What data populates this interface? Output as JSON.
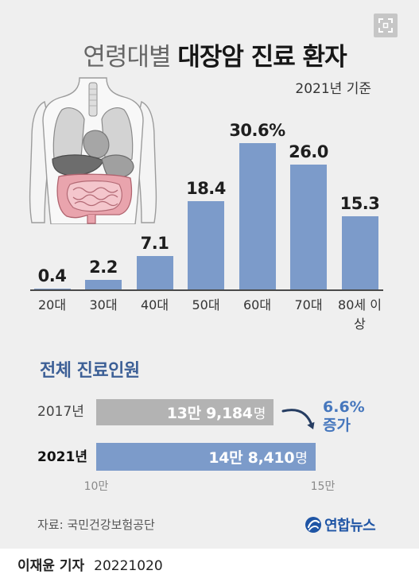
{
  "icons": {
    "expand": "expand-icon",
    "illustration": "torso-organs-illustration",
    "logo": "globe-logo-icon",
    "arrow": "curved-arrow-icon"
  },
  "colors": {
    "card_background": "#efefef",
    "age_bar": "#7c9bca",
    "bar_2017": "#b3b3b3",
    "bar_2021": "#7c9bca",
    "section_title": "#3c5f96",
    "increase": "#4677bd",
    "arrow": "#263d62",
    "logo": "#1f55a5"
  },
  "chart_data": [
    {
      "type": "bar",
      "title_light": "연령대별",
      "title": "대장암 진료 환자",
      "subtitle": "2021년 기준",
      "categories": [
        "20대",
        "30대",
        "40대",
        "50대",
        "60대",
        "70대",
        "80세 이상"
      ],
      "values": [
        0.4,
        2.2,
        7.1,
        18.4,
        30.6,
        26.0,
        15.3
      ],
      "value_labels": [
        "0.4",
        "2.2",
        "7.1",
        "18.4",
        "30.6%",
        "26.0",
        "15.3"
      ],
      "ylim": [
        0,
        33
      ],
      "grid": false
    },
    {
      "type": "bar",
      "orientation": "horizontal",
      "title": "전체 진료인원",
      "categories": [
        "2017년",
        "2021년"
      ],
      "values": [
        139184,
        148410
      ],
      "value_labels": [
        "13만 9,184",
        "14만 8,410"
      ],
      "unit": "명",
      "xlim": [
        100000,
        150000
      ],
      "x_ticks": [
        100000,
        150000
      ],
      "x_tick_labels": [
        "10만",
        "15만"
      ],
      "annotation": {
        "change": "6.6%",
        "label": "증가"
      },
      "grid": false
    }
  ],
  "source": "자료: 국민건강보험공단",
  "logo": {
    "text": "연합뉴스"
  },
  "credit": {
    "reporter": "이재윤 기자",
    "date": "20221020"
  }
}
